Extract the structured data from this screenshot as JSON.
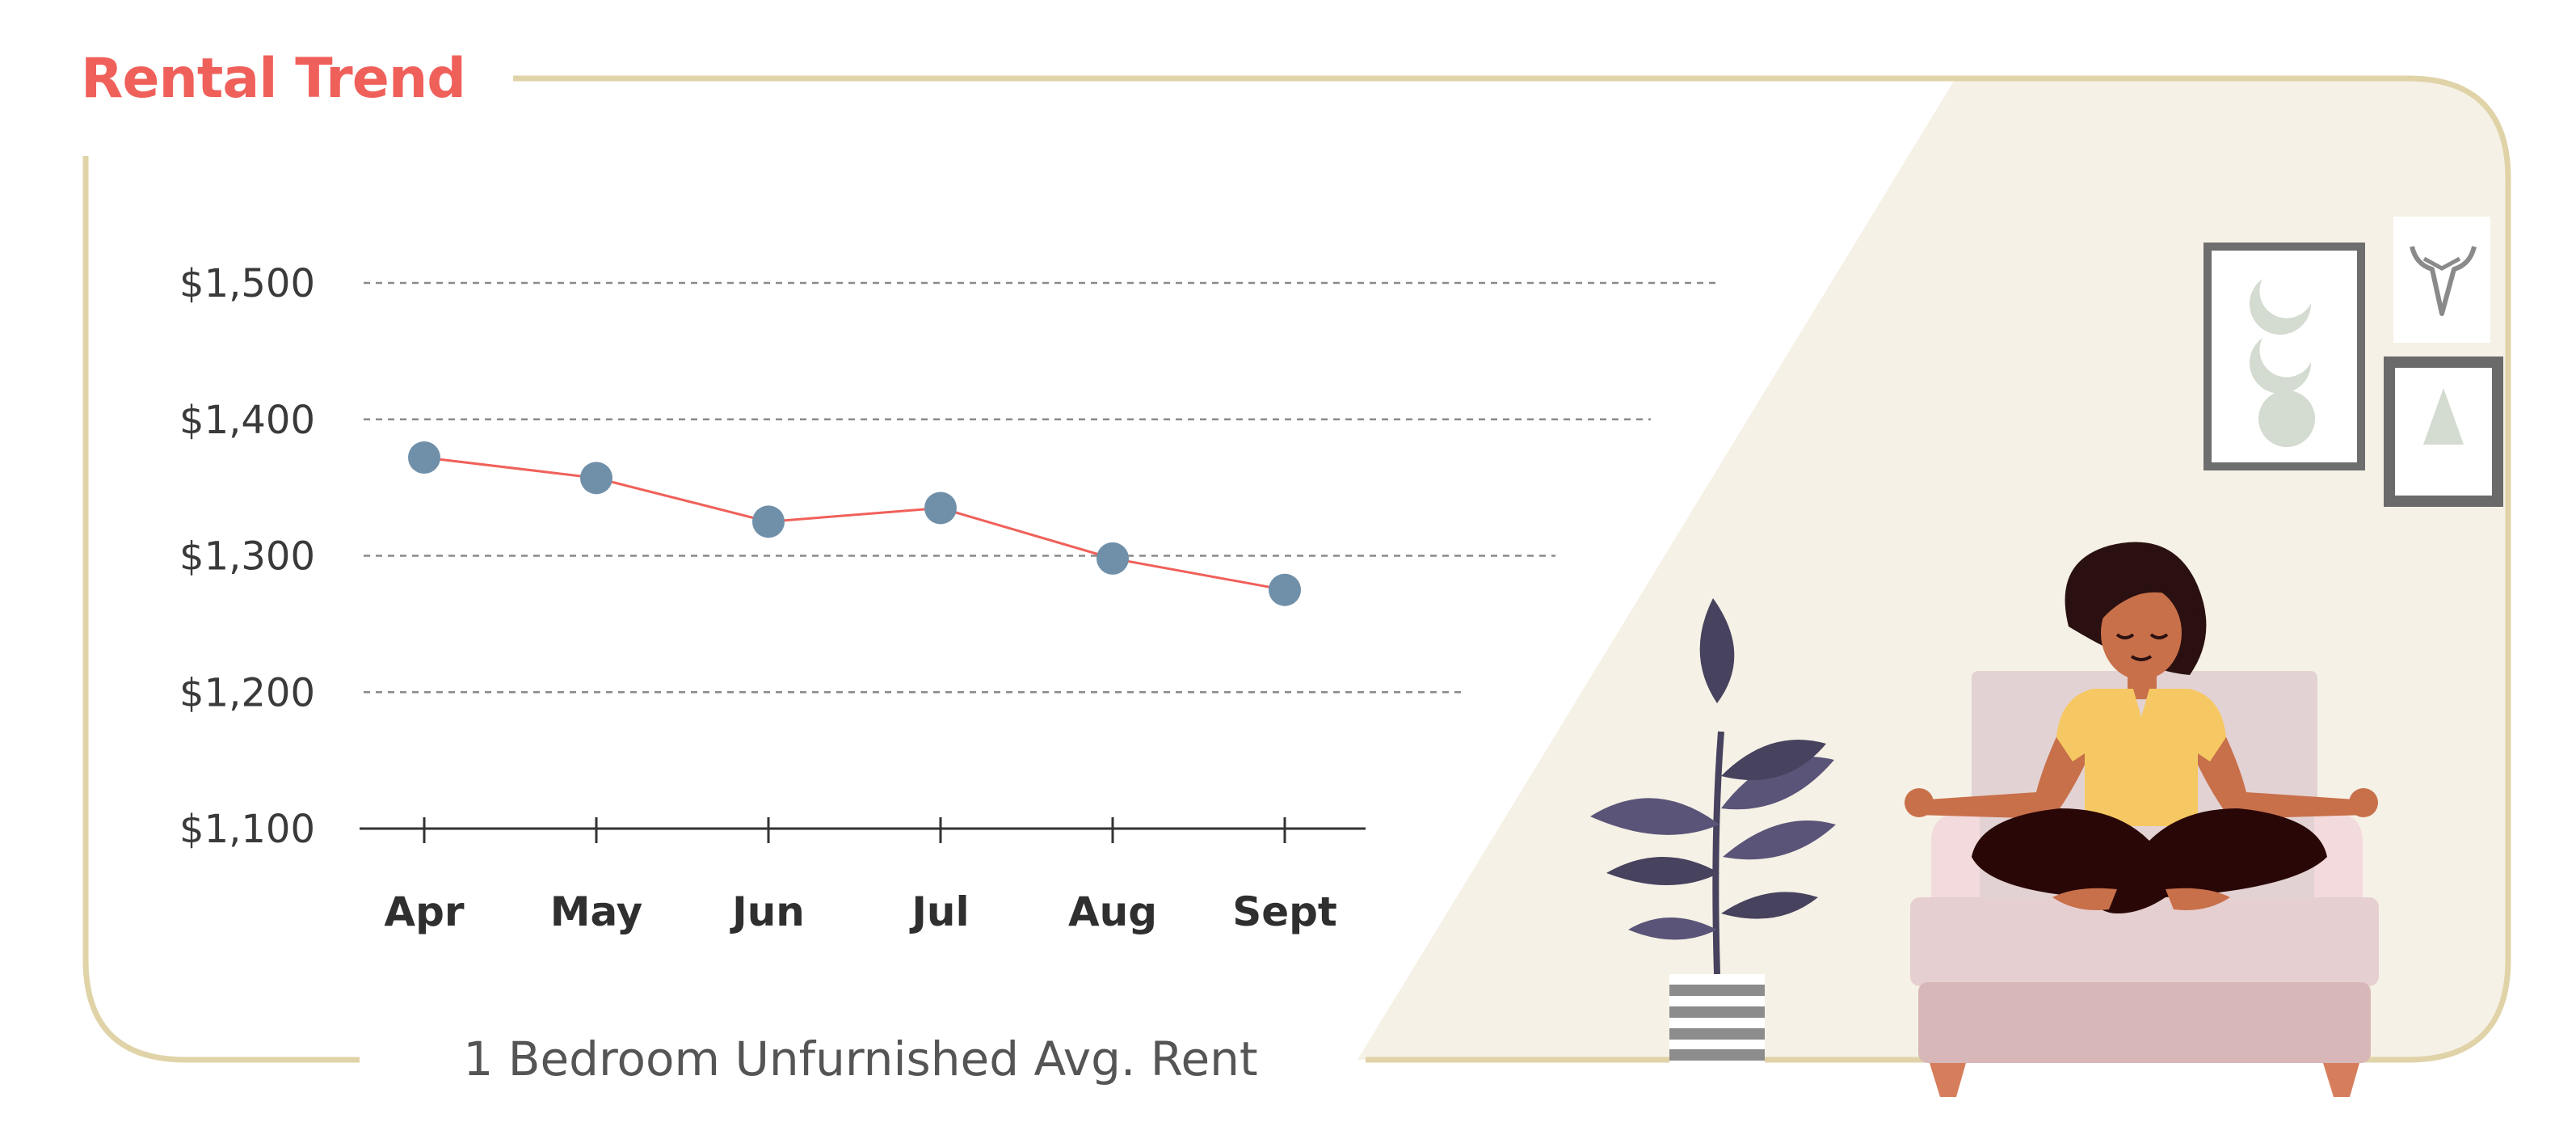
{
  "title": "Rental Trend",
  "caption": "1 Bedroom Unfurnished Avg. Rent",
  "colors": {
    "title": "#f0605a",
    "frame": "#e0d3a8",
    "wall": "#f6f1e6",
    "line": "#f0605a",
    "marker": "#7090aa",
    "grid": "#8a8a8a",
    "axis": "#333333"
  },
  "chart_data": {
    "type": "line",
    "title": "Rental Trend",
    "xlabel": "1 Bedroom Unfurnished Avg. Rent",
    "ylabel": "",
    "categories": [
      "Apr",
      "May",
      "Jun",
      "Jul",
      "Aug",
      "Sept"
    ],
    "values": [
      1372,
      1357,
      1325,
      1335,
      1298,
      1275
    ],
    "ylim": [
      1100,
      1500
    ],
    "yticks": [
      1500,
      1400,
      1300,
      1200,
      1100
    ],
    "ytick_labels": [
      "$1,500",
      "$1,400",
      "$1,300",
      "$1,200",
      "$1,100"
    ],
    "grid": "horizontal dashed",
    "legend": "none"
  },
  "illustration": {
    "scene": "woman meditating on a sofa next to a potted plant",
    "icons": [
      "meditating-woman-icon",
      "sofa-icon",
      "plant-icon",
      "moon-phases-frame-icon",
      "bull-skull-frame-icon",
      "triangle-frame-icon"
    ]
  }
}
